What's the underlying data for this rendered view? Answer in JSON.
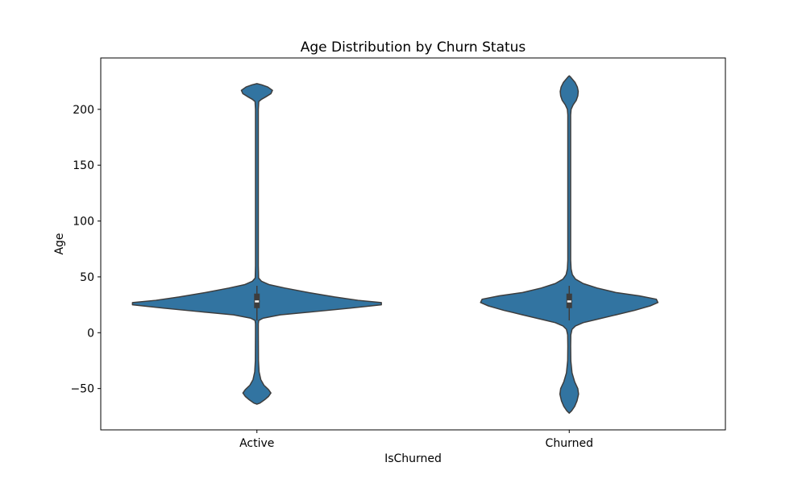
{
  "chart_data": {
    "type": "violin",
    "title": "Age Distribution by Churn Status",
    "xlabel": "IsChurned",
    "ylabel": "Age",
    "categories": [
      "Active",
      "Churned"
    ],
    "yticks": [
      -50,
      0,
      50,
      100,
      150,
      200
    ],
    "ylim": [
      -87,
      246
    ],
    "grid": false,
    "legend": "none",
    "colors": {
      "fill": "#3274a1",
      "outline": "#3d3d3d",
      "box": "#3d3d3d",
      "median": "#ffffff"
    },
    "violins": [
      {
        "category": "Active",
        "density_profile": [
          {
            "age": -64,
            "w": 0
          },
          {
            "age": -63,
            "w": 0.02
          },
          {
            "age": -60,
            "w": 0.05
          },
          {
            "age": -57,
            "w": 0.075
          },
          {
            "age": -54,
            "w": 0.09
          },
          {
            "age": -51,
            "w": 0.075
          },
          {
            "age": -47,
            "w": 0.045
          },
          {
            "age": -42,
            "w": 0.025
          },
          {
            "age": -35,
            "w": 0.014
          },
          {
            "age": -25,
            "w": 0.01
          },
          {
            "age": 0,
            "w": 0.009
          },
          {
            "age": 8,
            "w": 0.009
          },
          {
            "age": 11,
            "w": 0.012
          },
          {
            "age": 13,
            "w": 0.04
          },
          {
            "age": 16,
            "w": 0.15
          },
          {
            "age": 19,
            "w": 0.38
          },
          {
            "age": 22,
            "w": 0.6
          },
          {
            "age": 25,
            "w": 0.8
          },
          {
            "age": 27,
            "w": 0.8
          },
          {
            "age": 29,
            "w": 0.65
          },
          {
            "age": 32,
            "w": 0.5
          },
          {
            "age": 36,
            "w": 0.33
          },
          {
            "age": 40,
            "w": 0.18
          },
          {
            "age": 43,
            "w": 0.08
          },
          {
            "age": 46,
            "w": 0.03
          },
          {
            "age": 49,
            "w": 0.011
          },
          {
            "age": 60,
            "w": 0.009
          },
          {
            "age": 100,
            "w": 0.009
          },
          {
            "age": 150,
            "w": 0.009
          },
          {
            "age": 200,
            "w": 0.009
          },
          {
            "age": 207,
            "w": 0.012
          },
          {
            "age": 209,
            "w": 0.03
          },
          {
            "age": 211,
            "w": 0.055
          },
          {
            "age": 214,
            "w": 0.09
          },
          {
            "age": 217,
            "w": 0.1
          },
          {
            "age": 220,
            "w": 0.07
          },
          {
            "age": 222,
            "w": 0.03
          },
          {
            "age": 223,
            "w": 0
          }
        ],
        "box": {
          "q1": 22,
          "median": 28,
          "q3": 35,
          "whisker_low": 11,
          "whisker_high": 42
        }
      },
      {
        "category": "Churned",
        "density_profile": [
          {
            "age": -72,
            "w": 0
          },
          {
            "age": -70,
            "w": 0.015
          },
          {
            "age": -66,
            "w": 0.035
          },
          {
            "age": -61,
            "w": 0.05
          },
          {
            "age": -55,
            "w": 0.06
          },
          {
            "age": -50,
            "w": 0.055
          },
          {
            "age": -44,
            "w": 0.035
          },
          {
            "age": -36,
            "w": 0.018
          },
          {
            "age": -25,
            "w": 0.01
          },
          {
            "age": -12,
            "w": 0.009
          },
          {
            "age": -2,
            "w": 0.01
          },
          {
            "age": 3,
            "w": 0.018
          },
          {
            "age": 6,
            "w": 0.04
          },
          {
            "age": 9,
            "w": 0.09
          },
          {
            "age": 12,
            "w": 0.18
          },
          {
            "age": 16,
            "w": 0.3
          },
          {
            "age": 20,
            "w": 0.42
          },
          {
            "age": 24,
            "w": 0.52
          },
          {
            "age": 27,
            "w": 0.57
          },
          {
            "age": 30,
            "w": 0.56
          },
          {
            "age": 33,
            "w": 0.45
          },
          {
            "age": 36,
            "w": 0.3
          },
          {
            "age": 40,
            "w": 0.18
          },
          {
            "age": 44,
            "w": 0.09
          },
          {
            "age": 48,
            "w": 0.04
          },
          {
            "age": 52,
            "w": 0.02
          },
          {
            "age": 57,
            "w": 0.012
          },
          {
            "age": 65,
            "w": 0.009
          },
          {
            "age": 100,
            "w": 0.009
          },
          {
            "age": 150,
            "w": 0.009
          },
          {
            "age": 195,
            "w": 0.009
          },
          {
            "age": 200,
            "w": 0.012
          },
          {
            "age": 204,
            "w": 0.025
          },
          {
            "age": 208,
            "w": 0.045
          },
          {
            "age": 212,
            "w": 0.055
          },
          {
            "age": 216,
            "w": 0.058
          },
          {
            "age": 220,
            "w": 0.052
          },
          {
            "age": 224,
            "w": 0.038
          },
          {
            "age": 227,
            "w": 0.02
          },
          {
            "age": 229,
            "w": 0.008
          },
          {
            "age": 230,
            "w": 0
          }
        ],
        "box": {
          "q1": 22,
          "median": 28,
          "q3": 35,
          "whisker_low": 11,
          "whisker_high": 42
        }
      }
    ]
  }
}
